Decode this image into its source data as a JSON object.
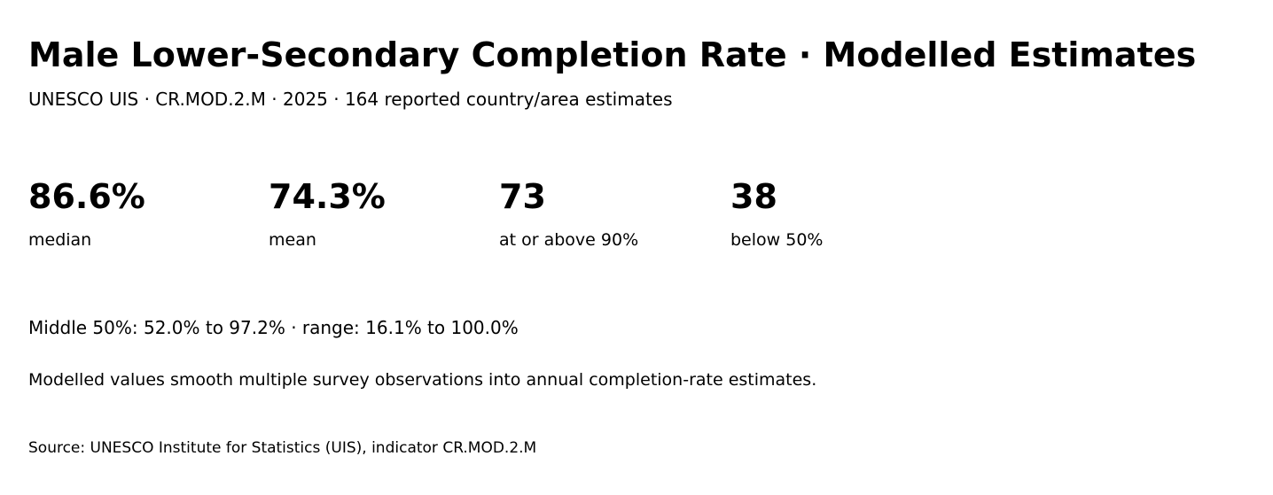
{
  "header": {
    "title": "Male Lower-Secondary Completion Rate · Modelled Estimates",
    "subtitle": "UNESCO UIS · CR.MOD.2.M · 2025 · 164 reported country/area estimates"
  },
  "stats": [
    {
      "value": "86.6%",
      "label": "median"
    },
    {
      "value": "74.3%",
      "label": "mean"
    },
    {
      "value": "73",
      "label": "at or above 90%"
    },
    {
      "value": "38",
      "label": "below 50%"
    }
  ],
  "spread_text": "Middle 50%: 52.0% to 97.2% · range: 16.1% to 100.0%",
  "note_text": "Modelled values smooth multiple survey observations into annual completion-rate estimates.",
  "source_text": "Source: UNESCO Institute for Statistics (UIS), indicator CR.MOD.2.M"
}
